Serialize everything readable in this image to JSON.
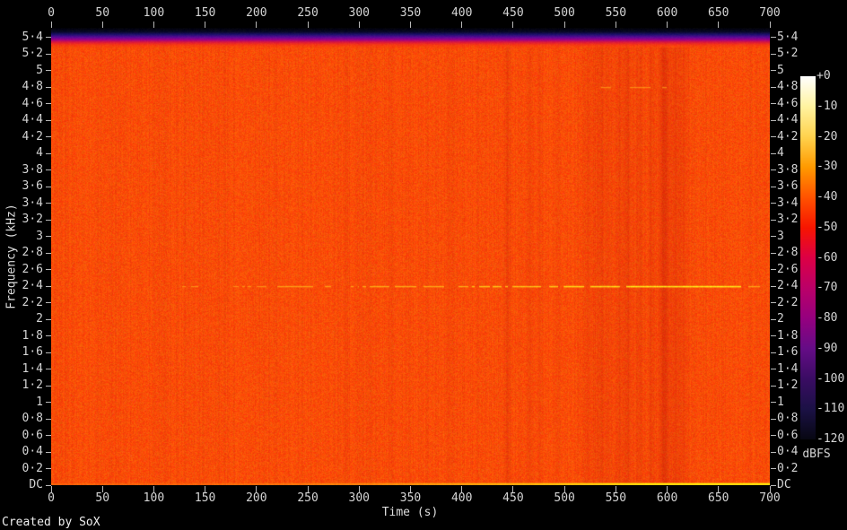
{
  "footer": {
    "credit": "Created by SoX"
  },
  "chart_data": {
    "type": "heatmap",
    "description": "Audio spectrogram (SoX): broadband orange noise floor with a dark low-energy band at the very top of the spectrum, a bright tonal line near 2.4 kHz growing stronger after ~400 s, a faint tone near 4.8 kHz around 510-610 s, darker vertical time-streaks between ~440 s and ~620 s, and a bright DC line along the bottom.",
    "xlabel": "Time (s)",
    "ylabel": "Frequency (kHz)",
    "xlim": [
      0,
      700
    ],
    "x_ticks": [
      0,
      50,
      100,
      150,
      200,
      250,
      300,
      350,
      400,
      450,
      500,
      550,
      600,
      650,
      700
    ],
    "y_max_khz": 5.5165,
    "y_ticks": [
      {
        "label": "5·4",
        "khz": 5.4
      },
      {
        "label": "5·2",
        "khz": 5.2
      },
      {
        "label": "5",
        "khz": 5.0
      },
      {
        "label": "4·8",
        "khz": 4.8
      },
      {
        "label": "4·6",
        "khz": 4.6
      },
      {
        "label": "4·4",
        "khz": 4.4
      },
      {
        "label": "4·2",
        "khz": 4.2
      },
      {
        "label": "4",
        "khz": 4.0
      },
      {
        "label": "3·8",
        "khz": 3.8
      },
      {
        "label": "3·6",
        "khz": 3.6
      },
      {
        "label": "3·4",
        "khz": 3.4
      },
      {
        "label": "3·2",
        "khz": 3.2
      },
      {
        "label": "3",
        "khz": 3.0
      },
      {
        "label": "2·8",
        "khz": 2.8
      },
      {
        "label": "2·6",
        "khz": 2.6
      },
      {
        "label": "2·4",
        "khz": 2.4
      },
      {
        "label": "2·2",
        "khz": 2.2
      },
      {
        "label": "2",
        "khz": 2.0
      },
      {
        "label": "1·8",
        "khz": 1.8
      },
      {
        "label": "1·6",
        "khz": 1.6
      },
      {
        "label": "1·4",
        "khz": 1.4
      },
      {
        "label": "1·2",
        "khz": 1.2
      },
      {
        "label": "1",
        "khz": 1.0
      },
      {
        "label": "0·8",
        "khz": 0.8
      },
      {
        "label": "0·6",
        "khz": 0.6
      },
      {
        "label": "0·4",
        "khz": 0.4
      },
      {
        "label": "0·2",
        "khz": 0.2
      },
      {
        "label": "DC",
        "khz": 0
      }
    ],
    "colorbar": {
      "label": "dBFS",
      "tick_labels": [
        "+0",
        "-10",
        "-20",
        "-30",
        "-40",
        "-50",
        "-60",
        "-70",
        "-80",
        "-90",
        "-100",
        "-110",
        "-120"
      ],
      "stops": [
        "#ffffff",
        "#fff3a0",
        "#ffd24d",
        "#ff9a00",
        "#ff5300",
        "#f71500",
        "#dc0045",
        "#bb0068",
        "#95007f",
        "#650c86",
        "#3a0c63",
        "#1b1145",
        "#070712"
      ]
    },
    "background_noise": {
      "base_rgb": [
        238,
        56,
        4
      ],
      "r_jitter": 22,
      "g_jitter": 40
    },
    "top_band": {
      "top_khz": 5.5165,
      "bottom_khz": 5.22,
      "stops_rgb": [
        [
          2,
          2,
          8
        ],
        [
          8,
          8,
          40
        ],
        [
          30,
          16,
          110
        ],
        [
          90,
          10,
          150
        ],
        [
          160,
          0,
          130
        ],
        [
          215,
          10,
          70
        ],
        [
          242,
          40,
          25
        ],
        [
          247,
          74,
          6
        ]
      ]
    },
    "tones": [
      {
        "khz": 2.4,
        "segments": [
          {
            "t0": 128,
            "t1": 210,
            "i": 0.3
          },
          {
            "t0": 210,
            "t1": 300,
            "i": 0.45
          },
          {
            "t0": 300,
            "t1": 410,
            "i": 0.55
          },
          {
            "t0": 410,
            "t1": 500,
            "i": 0.75
          },
          {
            "t0": 500,
            "t1": 560,
            "i": 0.9
          },
          {
            "t0": 560,
            "t1": 672,
            "i": 1.0
          },
          {
            "t0": 672,
            "t1": 690,
            "i": 0.5
          }
        ]
      },
      {
        "khz": 4.8,
        "segments": [
          {
            "t0": 512,
            "t1": 606,
            "i": 0.3
          }
        ]
      }
    ],
    "dc_line": {
      "ramp_start_s": 100,
      "full_s": 580,
      "min_intensity": 0.06
    },
    "time_streaks": [
      {
        "t": 287,
        "w": 3,
        "o": 0.08
      },
      {
        "t": 330,
        "w": 3,
        "o": 0.07
      },
      {
        "t": 387,
        "w": 4,
        "o": 0.07
      },
      {
        "t": 444,
        "w": 3,
        "o": 0.16
      },
      {
        "t": 466,
        "w": 4,
        "o": 0.14
      },
      {
        "t": 475,
        "w": 3,
        "o": 0.11
      },
      {
        "t": 492,
        "w": 3,
        "o": 0.1
      },
      {
        "t": 523,
        "w": 5,
        "o": 0.13
      },
      {
        "t": 530,
        "w": 4,
        "o": 0.12
      },
      {
        "t": 537,
        "w": 5,
        "o": 0.14
      },
      {
        "t": 544,
        "w": 4,
        "o": 0.12
      },
      {
        "t": 553,
        "w": 6,
        "o": 0.15
      },
      {
        "t": 562,
        "w": 5,
        "o": 0.2
      },
      {
        "t": 572,
        "w": 5,
        "o": 0.16
      },
      {
        "t": 584,
        "w": 4,
        "o": 0.18
      },
      {
        "t": 597,
        "w": 8,
        "o": 0.34
      },
      {
        "t": 607,
        "w": 4,
        "o": 0.24
      },
      {
        "t": 615,
        "w": 5,
        "o": 0.18
      }
    ]
  }
}
